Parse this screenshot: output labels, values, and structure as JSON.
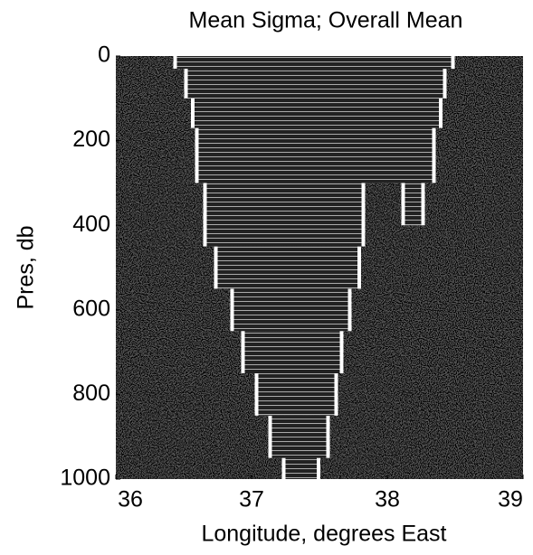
{
  "chart_data": {
    "type": "section",
    "title": "Mean Sigma; Overall Mean",
    "xlabel": "Longitude, degrees East",
    "ylabel": "Pres, db",
    "xlim": [
      36,
      39
    ],
    "xticks": [
      36,
      37,
      38,
      39
    ],
    "ylim": [
      1000,
      0
    ],
    "yticks": [
      0,
      200,
      400,
      600,
      800,
      1000
    ],
    "data_extent": [
      {
        "pres": [
          0,
          30
        ],
        "lon": [
          36.45,
          38.47
        ]
      },
      {
        "pres": [
          30,
          100
        ],
        "lon": [
          36.53,
          38.41
        ]
      },
      {
        "pres": [
          100,
          170
        ],
        "lon": [
          36.58,
          38.38
        ]
      },
      {
        "pres": [
          170,
          300
        ],
        "lon": [
          36.61,
          38.33
        ]
      },
      {
        "pres": [
          300,
          450
        ],
        "lon": [
          36.67,
          37.81
        ]
      },
      {
        "pres": [
          300,
          400
        ],
        "lon": [
          38.13,
          38.25
        ]
      },
      {
        "pres": [
          450,
          550
        ],
        "lon": [
          36.75,
          37.78
        ]
      },
      {
        "pres": [
          550,
          650
        ],
        "lon": [
          36.87,
          37.71
        ]
      },
      {
        "pres": [
          650,
          750
        ],
        "lon": [
          36.95,
          37.65
        ]
      },
      {
        "pres": [
          750,
          850
        ],
        "lon": [
          37.05,
          37.61
        ]
      },
      {
        "pres": [
          850,
          950
        ],
        "lon": [
          37.15,
          37.55
        ]
      },
      {
        "pres": [
          950,
          1000
        ],
        "lon": [
          37.25,
          37.48
        ]
      }
    ]
  }
}
